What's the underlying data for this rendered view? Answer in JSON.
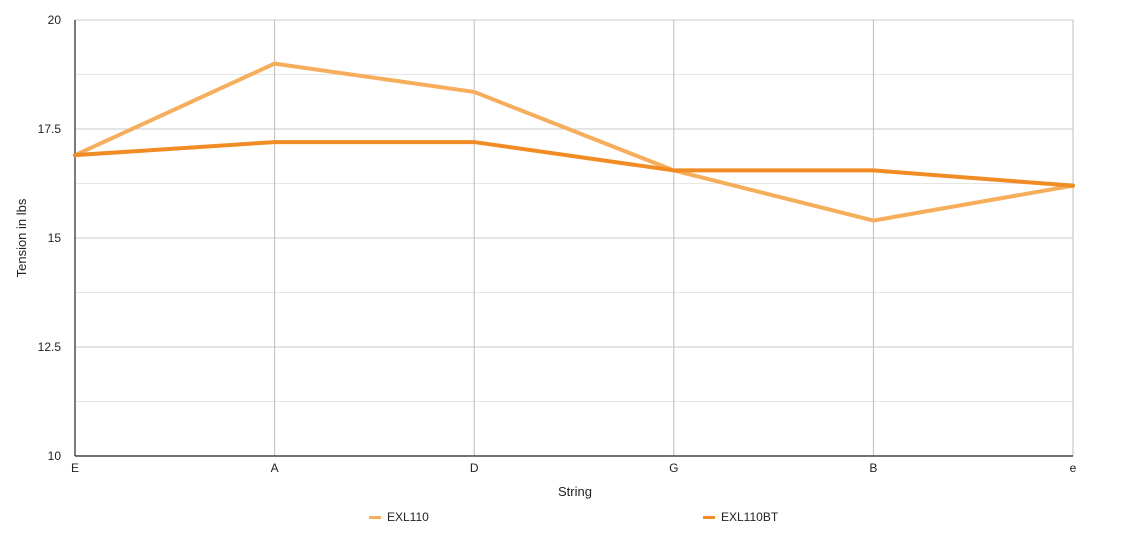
{
  "chart_data": {
    "type": "line",
    "title": "",
    "xlabel": "String",
    "ylabel": "Tension in lbs",
    "categories": [
      "E",
      "A",
      "D",
      "G",
      "B",
      "e"
    ],
    "ylim": [
      10,
      20
    ],
    "yticks": [
      10,
      12.5,
      15,
      17.5,
      20
    ],
    "grid": true,
    "legend_position": "bottom",
    "series": [
      {
        "name": "EXL110",
        "color": "#f6ad5c",
        "values": [
          16.9,
          19.0,
          18.35,
          16.55,
          15.4,
          16.2
        ]
      },
      {
        "name": "EXL110BT",
        "color": "#f08c23",
        "values": [
          16.9,
          17.2,
          17.2,
          16.55,
          16.55,
          16.2
        ]
      }
    ]
  }
}
